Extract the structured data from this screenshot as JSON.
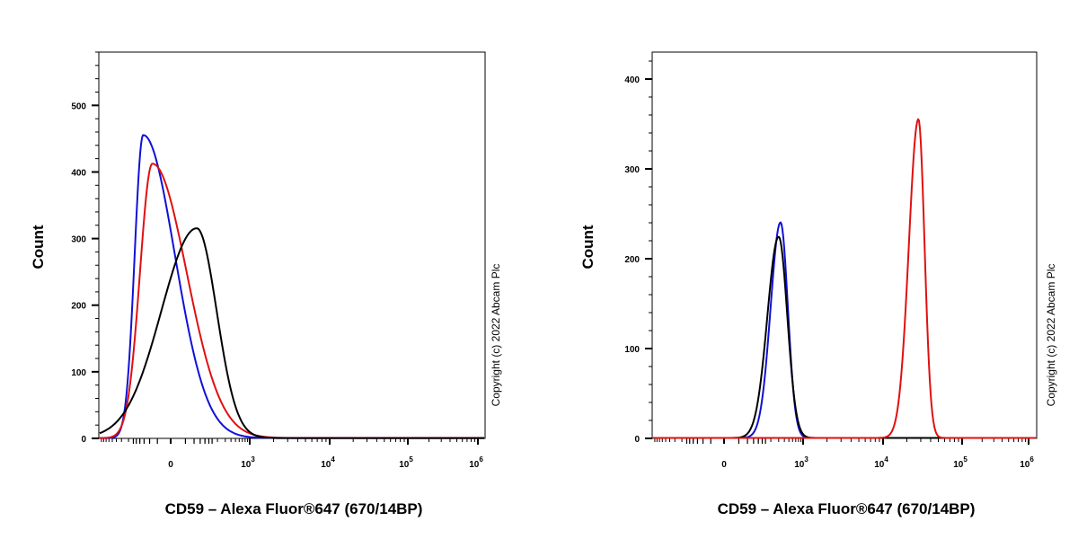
{
  "chart_data": [
    {
      "type": "line",
      "xlabel": "CD59 – Alexa Fluor®647 (670/14BP)",
      "ylabel": "Count",
      "ylim": [
        0,
        580
      ],
      "x_scale": "biexponential",
      "x_ticks": [
        {
          "base": "0",
          "exp": ""
        },
        {
          "base": "10",
          "exp": "3"
        },
        {
          "base": "10",
          "exp": "4"
        },
        {
          "base": "10",
          "exp": "5"
        },
        {
          "base": "10",
          "exp": "6"
        }
      ],
      "y_ticks": [
        "0",
        "100",
        "200",
        "300",
        "400",
        "500"
      ],
      "y_tick_values": [
        0,
        100,
        200,
        300,
        400,
        500
      ],
      "copyright": "Copyright (c) 2022 Abcam Plc",
      "series": [
        {
          "color": "#1010d8",
          "peaks": [
            {
              "center": -80,
              "height": 455,
              "wl": 90,
              "wr": 110
            }
          ]
        },
        {
          "color": "#e01010",
          "peaks": [
            {
              "center": -40,
              "height": 412,
              "wl": 95,
              "wr": 115
            }
          ]
        },
        {
          "color": "#000000",
          "peaks": [
            {
              "center": 60,
              "height": 315,
              "wl": 120,
              "wr": 230
            }
          ]
        }
      ]
    },
    {
      "type": "line",
      "xlabel": "CD59 – Alexa Fluor®647 (670/14BP)",
      "ylabel": "Count",
      "ylim": [
        0,
        430
      ],
      "x_scale": "biexponential",
      "x_ticks": [
        {
          "base": "0",
          "exp": ""
        },
        {
          "base": "10",
          "exp": "3"
        },
        {
          "base": "10",
          "exp": "4"
        },
        {
          "base": "10",
          "exp": "5"
        },
        {
          "base": "10",
          "exp": "6"
        }
      ],
      "y_ticks": [
        "0",
        "100",
        "200",
        "300",
        "400"
      ],
      "y_tick_values": [
        0,
        100,
        200,
        300,
        400
      ],
      "copyright": "Copyright (c) 2022 Abcam Plc",
      "series": [
        {
          "color": "#1010d8",
          "peaks": [
            {
              "center": 330,
              "height": 240,
              "wl": 170,
              "wr": 220
            }
          ]
        },
        {
          "color": "#000000",
          "peaks": [
            {
              "center": 300,
              "height": 224,
              "wl": 170,
              "wr": 250
            }
          ]
        },
        {
          "color": "#e01010",
          "peaks": [
            {
              "center": 28000,
              "height": 355,
              "wl": 9000,
              "wr": 8000
            }
          ]
        }
      ]
    }
  ]
}
